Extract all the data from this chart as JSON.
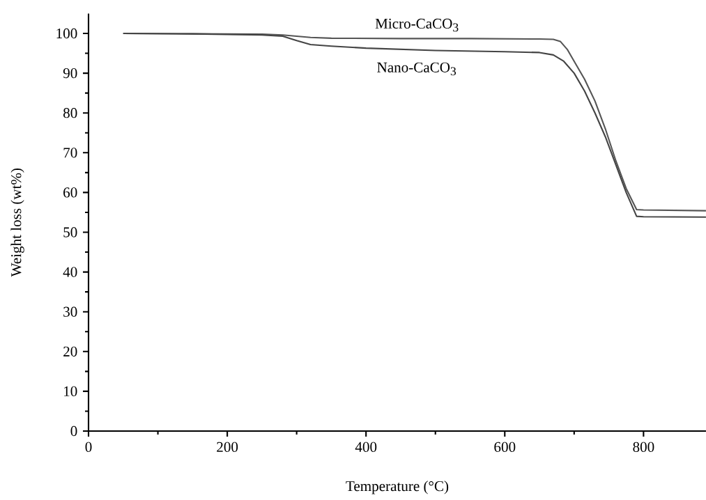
{
  "chart_data": {
    "type": "line",
    "xlabel": "Temperature (°C)",
    "ylabel": "Weight loss (wt%)",
    "xlim": [
      0,
      890
    ],
    "ylim": [
      0,
      105
    ],
    "xticks": [
      0,
      200,
      400,
      600,
      800
    ],
    "yticks": [
      0,
      10,
      20,
      30,
      40,
      50,
      60,
      70,
      80,
      90,
      100
    ],
    "grid": false,
    "legend": false,
    "line_style": "solid",
    "marker": "none",
    "series": [
      {
        "name": "Micro-CaCO$_{3}$",
        "color": "#555555",
        "x": [
          50,
          150,
          250,
          280,
          320,
          350,
          450,
          550,
          650,
          670,
          680,
          690,
          700,
          715,
          730,
          745,
          760,
          775,
          790,
          800,
          890
        ],
        "values": [
          100,
          99.9,
          99.8,
          99.6,
          99.0,
          98.8,
          98.7,
          98.7,
          98.6,
          98.5,
          98.0,
          96.0,
          93.0,
          88.5,
          83.0,
          76.0,
          68.0,
          61.0,
          55.7,
          55.6,
          55.4
        ]
      },
      {
        "name": "Nano-CaCO$_{3}$",
        "color": "#444444",
        "x": [
          50,
          150,
          250,
          280,
          300,
          320,
          350,
          400,
          500,
          600,
          650,
          670,
          685,
          700,
          715,
          730,
          745,
          760,
          775,
          790,
          800,
          890
        ],
        "values": [
          100,
          99.9,
          99.6,
          99.3,
          98.2,
          97.2,
          96.8,
          96.3,
          95.7,
          95.4,
          95.2,
          94.6,
          93.0,
          90.0,
          85.5,
          80.0,
          74.0,
          67.0,
          60.0,
          54.0,
          53.9,
          53.8
        ]
      }
    ]
  }
}
